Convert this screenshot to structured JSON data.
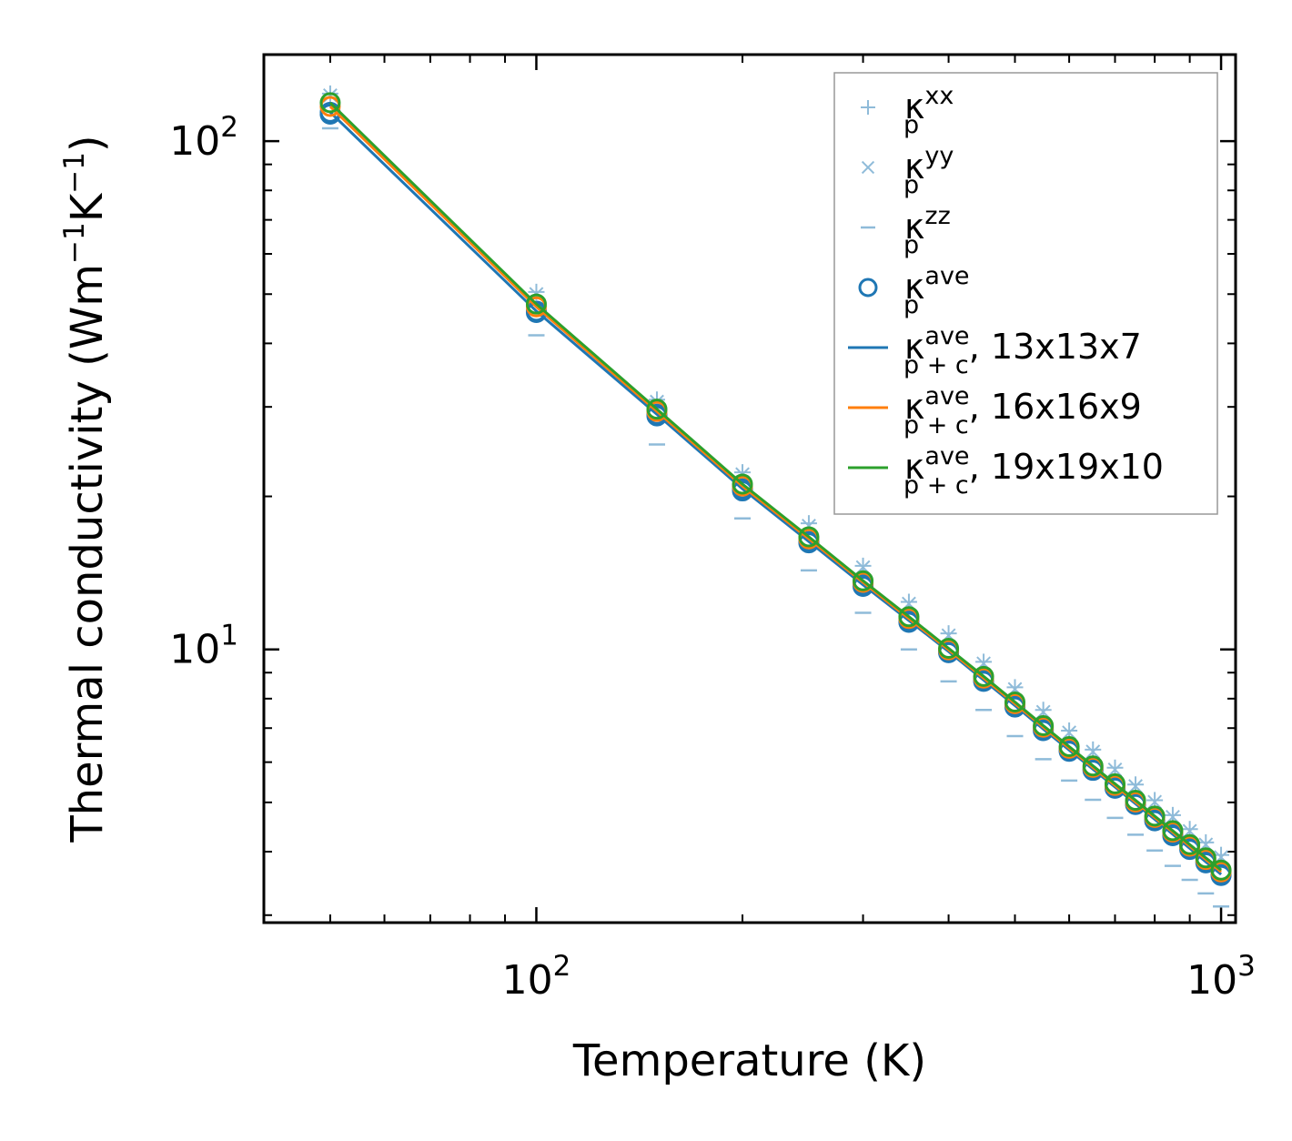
{
  "chart_data": {
    "type": "line",
    "xscale": "log",
    "yscale": "log",
    "xlabel": "Temperature (K)",
    "ylabel": {
      "main": "Thermal conductivity (Wm",
      "exp1": "−1",
      "mid": "K",
      "exp2": "−1",
      "close": ")"
    },
    "xlim": [
      40,
      1050
    ],
    "ylim": [
      2.9,
      148
    ],
    "x_ticks": [
      {
        "value": 100,
        "base": "10",
        "exp": "2"
      },
      {
        "value": 1000,
        "base": "10",
        "exp": "3"
      }
    ],
    "y_ticks": [
      {
        "value": 10,
        "base": "10",
        "exp": "1"
      },
      {
        "value": 100,
        "base": "10",
        "exp": "2"
      }
    ],
    "x": [
      50,
      100,
      150,
      200,
      250,
      300,
      350,
      400,
      450,
      500,
      550,
      600,
      650,
      700,
      750,
      800,
      850,
      900,
      950,
      1000
    ],
    "markers": [
      {
        "name": "κ_p^xx",
        "label_base": "κ",
        "label_sub": "p",
        "label_sup": "xx",
        "marker": "plus",
        "color": "#8fbbd9",
        "values": [
          124,
          50.5,
          31.0,
          22.3,
          17.7,
          14.6,
          12.4,
          10.75,
          9.45,
          8.42,
          7.6,
          6.92,
          6.35,
          5.85,
          5.42,
          5.05,
          4.72,
          4.43,
          4.17,
          3.94
        ]
      },
      {
        "name": "κ_p^yy",
        "label_base": "κ",
        "label_sub": "p",
        "label_sup": "yy",
        "marker": "x",
        "color": "#8fbbd9",
        "values": [
          123,
          50.0,
          30.7,
          22.1,
          17.5,
          14.5,
          12.3,
          10.65,
          9.38,
          8.35,
          7.53,
          6.86,
          6.29,
          5.8,
          5.38,
          5.01,
          4.68,
          4.39,
          4.13,
          3.9
        ]
      },
      {
        "name": "κ_p^zz",
        "label_base": "κ",
        "label_sub": "p",
        "label_sup": "zz",
        "marker": "dash",
        "color": "#8fbbd9",
        "values": [
          106,
          41.5,
          25.3,
          18.1,
          14.3,
          11.8,
          10.0,
          8.65,
          7.6,
          6.75,
          6.08,
          5.52,
          5.06,
          4.66,
          4.32,
          4.02,
          3.75,
          3.52,
          3.31,
          3.12
        ]
      },
      {
        "name": "κ_p^ave",
        "label_base": "κ",
        "label_sub": "p",
        "label_sup": "ave",
        "marker": "circle",
        "color": "#1f77b4",
        "values": [
          113,
          46.0,
          28.8,
          20.5,
          16.2,
          13.3,
          11.3,
          9.85,
          8.65,
          7.7,
          6.92,
          6.3,
          5.78,
          5.33,
          4.95,
          4.6,
          4.3,
          4.04,
          3.8,
          3.59
        ]
      }
    ],
    "series": [
      {
        "name": "κ_p+c^ave, 13x13x7",
        "label_base": "κ",
        "label_sub": "p + c",
        "label_sup": "ave",
        "label_suffix": ", 13x13x7",
        "color": "#1f77b4",
        "values": [
          114,
          46.3,
          29.0,
          20.7,
          16.3,
          13.4,
          11.4,
          9.9,
          8.7,
          7.75,
          6.97,
          6.34,
          5.81,
          5.36,
          4.97,
          4.63,
          4.33,
          4.06,
          3.82,
          3.61
        ]
      },
      {
        "name": "κ_p+c^ave, 16x16x9",
        "label_base": "κ",
        "label_sub": "p + c",
        "label_sup": "ave",
        "label_suffix": ", 16x16x9",
        "color": "#ff7f0e",
        "values": [
          117,
          47.2,
          29.4,
          20.95,
          16.5,
          13.55,
          11.5,
          9.98,
          8.78,
          7.82,
          7.03,
          6.39,
          5.86,
          5.4,
          5.01,
          4.67,
          4.37,
          4.1,
          3.86,
          3.65
        ]
      },
      {
        "name": "κ_p+c^ave, 19x19x10",
        "label_base": "κ",
        "label_sub": "p + c",
        "label_sup": "ave",
        "label_suffix": ", 19x19x10",
        "color": "#2ca02c",
        "values": [
          119,
          47.8,
          29.7,
          21.15,
          16.65,
          13.65,
          11.6,
          10.05,
          8.85,
          7.88,
          7.08,
          6.44,
          5.9,
          5.44,
          5.05,
          4.7,
          4.4,
          4.13,
          3.89,
          3.68
        ]
      }
    ],
    "legend_position": "upper right",
    "grid": false
  }
}
